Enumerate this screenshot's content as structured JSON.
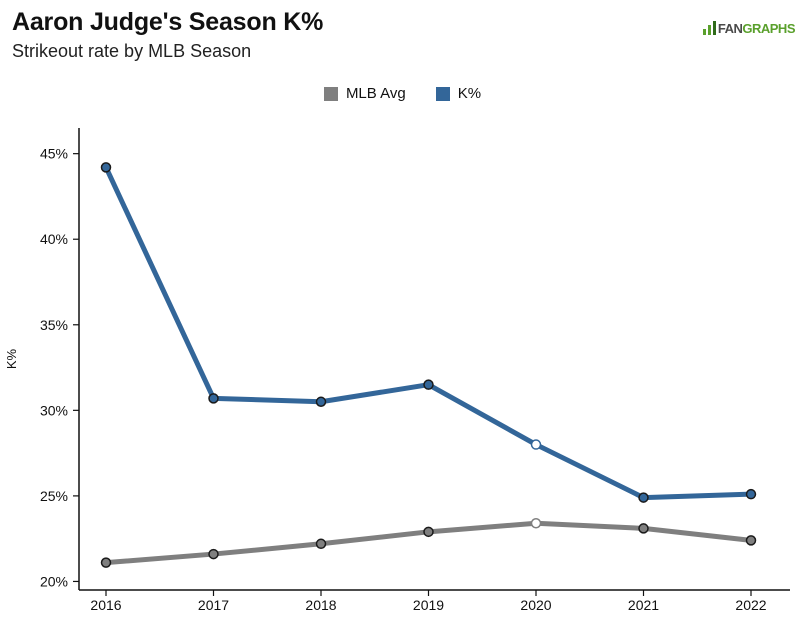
{
  "header": {
    "title": "Aaron Judge's Season K%",
    "subtitle": "Strikeout rate by MLB Season",
    "logo_text_a": "FAN",
    "logo_text_b": "GRAPHS"
  },
  "colors": {
    "mlb_avg": "#7f7f7f",
    "k_pct": "#336699",
    "logo_green": "#5aa02c"
  },
  "chart_data": {
    "type": "line",
    "title": "Aaron Judge's Season K%",
    "subtitle": "Strikeout rate by MLB Season",
    "xlabel": "",
    "ylabel": "K%",
    "x": [
      2016,
      2017,
      2018,
      2019,
      2020,
      2021,
      2022
    ],
    "x_tick_labels": [
      "2016",
      "2017",
      "2018",
      "2019",
      "2020",
      "2021",
      "2022"
    ],
    "ylim": [
      19.5,
      46.5
    ],
    "y_ticks": [
      20,
      25,
      30,
      35,
      40,
      45
    ],
    "y_tick_labels": [
      "20%",
      "25%",
      "30%",
      "35%",
      "40%",
      "45%"
    ],
    "grid": false,
    "legend_position": "top-center",
    "series": [
      {
        "name": "MLB Avg",
        "color": "#7f7f7f",
        "values": [
          21.1,
          21.6,
          22.2,
          22.9,
          23.4,
          23.1,
          22.4
        ]
      },
      {
        "name": "K%",
        "color": "#336699",
        "values": [
          44.2,
          30.7,
          30.5,
          31.5,
          28.0,
          24.9,
          25.1
        ]
      }
    ],
    "hollow_points_x": [
      2020
    ]
  }
}
